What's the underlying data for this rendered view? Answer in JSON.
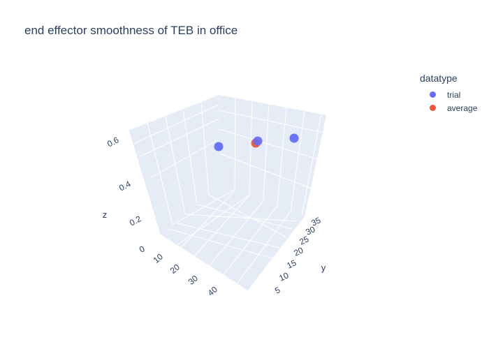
{
  "chart_data": {
    "type": "scatter",
    "title": "end effector smoothness of TEB in office",
    "xlabel": "",
    "ylabel": "y",
    "zlabel": "z",
    "legend_title": "datatype",
    "legend_position": "top-right",
    "x_ticks": [
      "0",
      "10",
      "20",
      "30",
      "40"
    ],
    "y_ticks": [
      "5",
      "10",
      "15",
      "20",
      "25",
      "30",
      "35"
    ],
    "z_ticks": [
      "0",
      "0.2",
      "0.4",
      "0.6"
    ],
    "series": [
      {
        "name": "trial",
        "color": "#636efa"
      },
      {
        "name": "average",
        "color": "#ef553b"
      }
    ]
  }
}
